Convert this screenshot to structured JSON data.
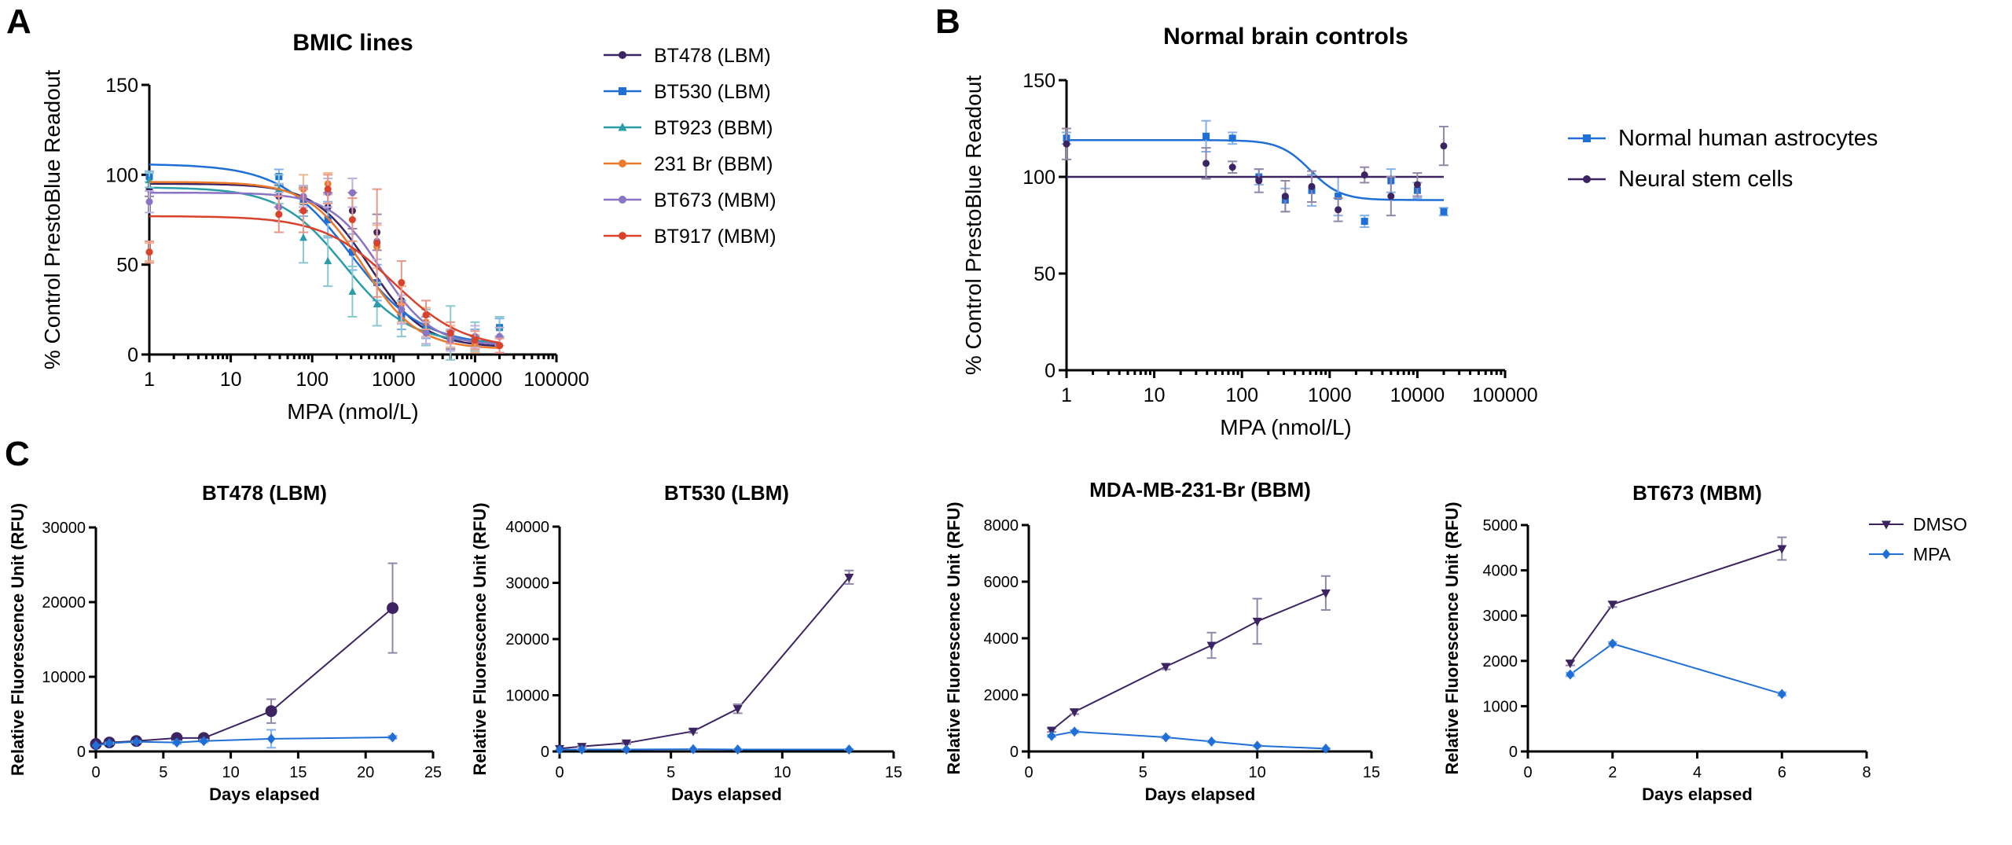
{
  "panels": [
    "A",
    "B",
    "C"
  ],
  "chart_data": [
    {
      "id": "A",
      "type": "line",
      "title": "BMIC lines",
      "xlabel": "MPA (nmol/L)",
      "ylabel": "% Control PrestoBlue Readout",
      "xscale": "log",
      "xlim": [
        1,
        100000
      ],
      "ylim": [
        0,
        150
      ],
      "xticks": [
        "1",
        "10",
        "100",
        "1000",
        "10000",
        "100000"
      ],
      "yticks": [
        "0",
        "50",
        "100",
        "150"
      ],
      "legend_position": "right",
      "series": [
        {
          "name": "BT478 (LBM)",
          "color": "#3b2461",
          "marker": "circle",
          "fit": {
            "top": 95,
            "bottom": 4,
            "ic50": 500,
            "hill": 1.3
          },
          "x": [
            1,
            39,
            78,
            156,
            312,
            625,
            1250,
            2500,
            5000,
            10000,
            20000
          ],
          "y": [
            92,
            88,
            86,
            82,
            80,
            68,
            30,
            15,
            8,
            6,
            5
          ],
          "err": [
            4,
            6,
            6,
            8,
            10,
            10,
            8,
            6,
            5,
            4,
            4
          ]
        },
        {
          "name": "BT530 (LBM)",
          "color": "#1f6fd6",
          "marker": "square",
          "fit": {
            "top": 106,
            "bottom": 5,
            "ic50": 300,
            "hill": 1.0
          },
          "x": [
            1,
            39,
            78,
            156,
            312,
            625,
            1250,
            2500,
            5000,
            10000,
            20000
          ],
          "y": [
            99,
            99,
            85,
            75,
            57,
            40,
            22,
            15,
            10,
            8,
            15
          ],
          "err": [
            3,
            4,
            8,
            10,
            10,
            10,
            8,
            6,
            6,
            6,
            5
          ]
        },
        {
          "name": "BT923 (BBM)",
          "color": "#2a9da8",
          "marker": "triangle",
          "fit": {
            "top": 93,
            "bottom": 6,
            "ic50": 250,
            "hill": 1.1
          },
          "x": [
            1,
            39,
            78,
            156,
            312,
            625,
            1250,
            2500,
            5000,
            10000,
            20000
          ],
          "y": [
            97,
            92,
            65,
            52,
            35,
            28,
            20,
            15,
            12,
            10,
            15
          ],
          "err": [
            4,
            8,
            14,
            14,
            14,
            12,
            10,
            10,
            15,
            8,
            6
          ]
        },
        {
          "name": "231 Br (BBM)",
          "color": "#ea7a2a",
          "marker": "circle",
          "fit": {
            "top": 96,
            "bottom": 3,
            "ic50": 420,
            "hill": 1.3
          },
          "x": [
            1,
            39,
            78,
            156,
            312,
            625,
            1250,
            2500,
            5000,
            10000,
            20000
          ],
          "y": [
            57,
            78,
            92,
            95,
            90,
            60,
            28,
            18,
            10,
            6,
            5
          ],
          "err": [
            5,
            10,
            8,
            6,
            8,
            12,
            10,
            8,
            6,
            5,
            4
          ]
        },
        {
          "name": "BT673 (MBM)",
          "color": "#8a74c4",
          "marker": "circle",
          "fit": {
            "top": 90,
            "bottom": 5,
            "ic50": 700,
            "hill": 1.4
          },
          "x": [
            1,
            39,
            78,
            156,
            312,
            625,
            1250,
            2500,
            5000,
            10000,
            20000
          ],
          "y": [
            85,
            82,
            88,
            90,
            90,
            63,
            25,
            12,
            8,
            10,
            10
          ],
          "err": [
            6,
            8,
            6,
            8,
            8,
            10,
            8,
            6,
            6,
            6,
            5
          ]
        },
        {
          "name": "BT917 (MBM)",
          "color": "#d9422b",
          "marker": "circle",
          "fit": {
            "top": 77,
            "bottom": 3,
            "ic50": 1000,
            "hill": 1.0
          },
          "x": [
            1,
            39,
            78,
            156,
            312,
            625,
            1250,
            2500,
            5000,
            10000,
            20000
          ],
          "y": [
            57,
            78,
            80,
            92,
            75,
            62,
            40,
            22,
            12,
            8,
            5
          ],
          "err": [
            6,
            10,
            12,
            8,
            12,
            30,
            12,
            8,
            6,
            5,
            4
          ]
        }
      ]
    },
    {
      "id": "B",
      "type": "line",
      "title": "Normal brain controls",
      "xlabel": "MPA (nmol/L)",
      "ylabel": "% Control PrestoBlue Readout",
      "xscale": "log",
      "xlim": [
        1,
        100000
      ],
      "ylim": [
        0,
        150
      ],
      "xticks": [
        "1",
        "10",
        "100",
        "1000",
        "10000",
        "100000"
      ],
      "yticks": [
        "0",
        "50",
        "100",
        "150"
      ],
      "legend_position": "right",
      "series": [
        {
          "name": "Normal human astrocytes",
          "color": "#1f6fd6",
          "marker": "square",
          "fit": {
            "top": 119,
            "bottom": 88,
            "ic50": 600,
            "hill": 2.5
          },
          "x": [
            1,
            39,
            78,
            156,
            312,
            625,
            1250,
            2500,
            5000,
            10000,
            20000
          ],
          "y": [
            120,
            121,
            120,
            100,
            88,
            93,
            90,
            77,
            98,
            93,
            82
          ],
          "err": [
            3,
            8,
            3,
            4,
            6,
            8,
            10,
            3,
            6,
            4,
            2
          ]
        },
        {
          "name": "Neural stem cells",
          "color": "#3b2461",
          "marker": "circle",
          "fit": {
            "top": 100,
            "bottom": 100,
            "ic50": 600,
            "hill": 1.0
          },
          "x": [
            1,
            39,
            78,
            156,
            312,
            625,
            1250,
            2500,
            5000,
            10000,
            20000
          ],
          "y": [
            117,
            107,
            105,
            98,
            90,
            95,
            83,
            101,
            90,
            96,
            116
          ],
          "err": [
            8,
            8,
            3,
            6,
            8,
            8,
            6,
            4,
            10,
            6,
            10
          ]
        }
      ]
    },
    {
      "id": "C1",
      "type": "line",
      "title": "BT478 (LBM)",
      "xlabel": "Days elapsed",
      "ylabel": "Relative Fluorescence Unit (RFU)",
      "xlim": [
        0,
        25
      ],
      "ylim": [
        0,
        30000
      ],
      "xticks": [
        "0",
        "5",
        "10",
        "15",
        "20",
        "25"
      ],
      "yticks": [
        "0",
        "10000",
        "20000",
        "30000"
      ],
      "series": [
        {
          "name": "DMSO",
          "color": "#3b2461",
          "marker": "circle-large",
          "x": [
            0,
            1,
            3,
            6,
            8,
            13,
            22
          ],
          "y": [
            1000,
            1200,
            1400,
            1800,
            1800,
            5400,
            19200
          ],
          "err": [
            0,
            200,
            200,
            300,
            300,
            1600,
            6000
          ]
        },
        {
          "name": "MPA",
          "color": "#1f6fd6",
          "marker": "diamond",
          "x": [
            0,
            1,
            3,
            6,
            8,
            13,
            22
          ],
          "y": [
            800,
            1100,
            1300,
            1200,
            1400,
            1700,
            1900
          ],
          "err": [
            0,
            100,
            100,
            200,
            200,
            1200,
            200
          ]
        }
      ]
    },
    {
      "id": "C2",
      "type": "line",
      "title": "BT530 (LBM)",
      "xlabel": "Days elapsed",
      "ylabel": "Relative Fluorescence Unit (RFU)",
      "xlim": [
        0,
        15
      ],
      "ylim": [
        0,
        40000
      ],
      "xticks": [
        "0",
        "5",
        "10",
        "15"
      ],
      "yticks": [
        "0",
        "10000",
        "20000",
        "30000",
        "40000"
      ],
      "series": [
        {
          "name": "DMSO",
          "color": "#3b2461",
          "marker": "triangle-down",
          "x": [
            0,
            1,
            3,
            6,
            8,
            13
          ],
          "y": [
            500,
            900,
            1500,
            3600,
            7600,
            31000
          ],
          "err": [
            0,
            100,
            200,
            300,
            800,
            1200
          ]
        },
        {
          "name": "MPA",
          "color": "#1f6fd6",
          "marker": "diamond",
          "x": [
            0,
            1,
            3,
            6,
            8,
            13
          ],
          "y": [
            300,
            350,
            350,
            400,
            350,
            350
          ],
          "err": [
            0,
            50,
            50,
            50,
            50,
            50
          ]
        }
      ]
    },
    {
      "id": "C3",
      "type": "line",
      "title": "MDA-MB-231-Br (BBM)",
      "xlabel": "Days elapsed",
      "ylabel": "Relative Fluorescence Unit (RFU)",
      "xlim": [
        0,
        15
      ],
      "ylim": [
        0,
        8000
      ],
      "xticks": [
        "0",
        "5",
        "10",
        "15"
      ],
      "yticks": [
        "0",
        "2000",
        "4000",
        "6000",
        "8000"
      ],
      "series": [
        {
          "name": "DMSO",
          "color": "#3b2461",
          "marker": "triangle-down",
          "x": [
            1,
            2,
            6,
            8,
            10,
            13
          ],
          "y": [
            750,
            1400,
            3000,
            3750,
            4600,
            5600
          ],
          "err": [
            60,
            80,
            100,
            450,
            800,
            600
          ]
        },
        {
          "name": "MPA",
          "color": "#1f6fd6",
          "marker": "diamond",
          "x": [
            1,
            2,
            6,
            8,
            10,
            13
          ],
          "y": [
            550,
            700,
            500,
            350,
            200,
            100
          ],
          "err": [
            40,
            50,
            40,
            30,
            30,
            20
          ]
        }
      ]
    },
    {
      "id": "C4",
      "type": "line",
      "title": "BT673 (MBM)",
      "xlabel": "Days elapsed",
      "ylabel": "Relative Fluorescence Unit (RFU)",
      "xlim": [
        0,
        8
      ],
      "ylim": [
        0,
        5000
      ],
      "xticks": [
        "0",
        "2",
        "4",
        "6",
        "8"
      ],
      "yticks": [
        "0",
        "1000",
        "2000",
        "3000",
        "4000",
        "5000"
      ],
      "legend": [
        "DMSO",
        "MPA"
      ],
      "series": [
        {
          "name": "DMSO",
          "color": "#3b2461",
          "marker": "triangle-down",
          "x": [
            1,
            2,
            6
          ],
          "y": [
            1950,
            3250,
            4480
          ],
          "err": [
            50,
            60,
            250
          ]
        },
        {
          "name": "MPA",
          "color": "#1f6fd6",
          "marker": "diamond",
          "x": [
            1,
            2,
            6
          ],
          "y": [
            1700,
            2380,
            1270
          ],
          "err": [
            40,
            40,
            40
          ]
        }
      ]
    }
  ]
}
